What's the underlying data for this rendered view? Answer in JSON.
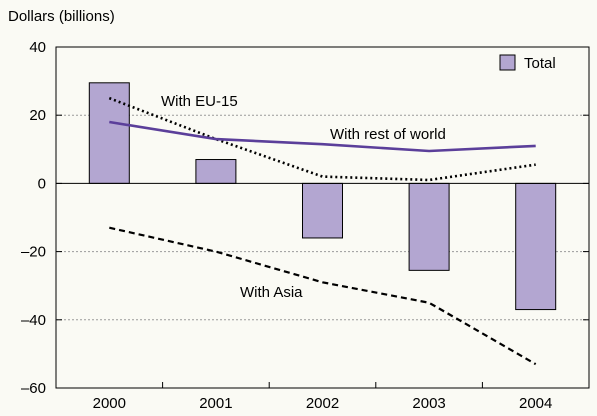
{
  "chart_data": {
    "type": "bar",
    "ylabel": "Dollars (billions)",
    "xlabel": "",
    "title": "",
    "categories": [
      "2000",
      "2001",
      "2002",
      "2003",
      "2004"
    ],
    "ylim": [
      -60,
      40
    ],
    "yticks": [
      40,
      20,
      0,
      -20,
      -40,
      -60
    ],
    "grid": true,
    "legend_position": "top-right",
    "series": [
      {
        "name": "Total",
        "type": "bar",
        "values": [
          29.5,
          7,
          -16,
          -25.5,
          -37
        ],
        "color": "#b3a6d1"
      },
      {
        "name": "With EU-15",
        "type": "line",
        "style": "dotted",
        "values": [
          25,
          13,
          2,
          1,
          5.5
        ],
        "color": "#000000"
      },
      {
        "name": "With rest of world",
        "type": "line",
        "style": "solid",
        "values": [
          18,
          13,
          11.5,
          9.5,
          11
        ],
        "color": "#5b3f9a"
      },
      {
        "name": "With Asia",
        "type": "line",
        "style": "dashed",
        "values": [
          -13,
          -20,
          -29,
          -35,
          -53
        ],
        "color": "#000000"
      }
    ]
  }
}
